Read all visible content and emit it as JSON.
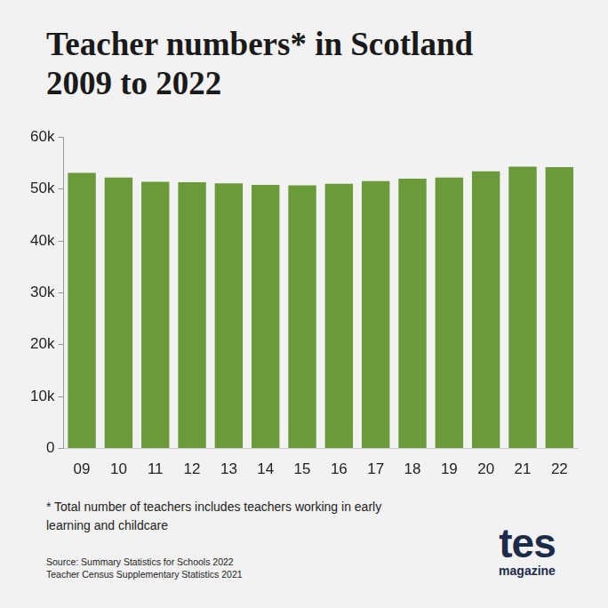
{
  "chart_data": {
    "type": "bar",
    "title": [
      "Teacher numbers* in Scotland",
      "2009 to 2022"
    ],
    "categories": [
      "09",
      "10",
      "11",
      "12",
      "13",
      "14",
      "15",
      "16",
      "17",
      "18",
      "19",
      "20",
      "21",
      "22"
    ],
    "values": [
      53100,
      52200,
      51400,
      51300,
      51100,
      50800,
      50700,
      51000,
      51500,
      52000,
      52200,
      53400,
      54300,
      54200
    ],
    "color": "#6a9a3a",
    "ylim": [
      0,
      60000
    ],
    "yticks": [
      0,
      {
        "value": 10000,
        "label": "10k"
      },
      {
        "value": 20000,
        "label": "20k"
      },
      {
        "value": 30000,
        "label": "30k"
      },
      {
        "value": 40000,
        "label": "40k"
      },
      {
        "value": 50000,
        "label": "50k"
      },
      {
        "value": 60000,
        "label": "60k"
      }
    ],
    "grid": false,
    "footnote": "* Total number of teachers includes teachers working in early learning and childcare",
    "source": [
      "Source: Summary Statistics for Schools 2022",
      "Teacher Census Supplementary Statistics 2021"
    ],
    "logo": {
      "main": "tes",
      "sub": "magazine"
    }
  }
}
